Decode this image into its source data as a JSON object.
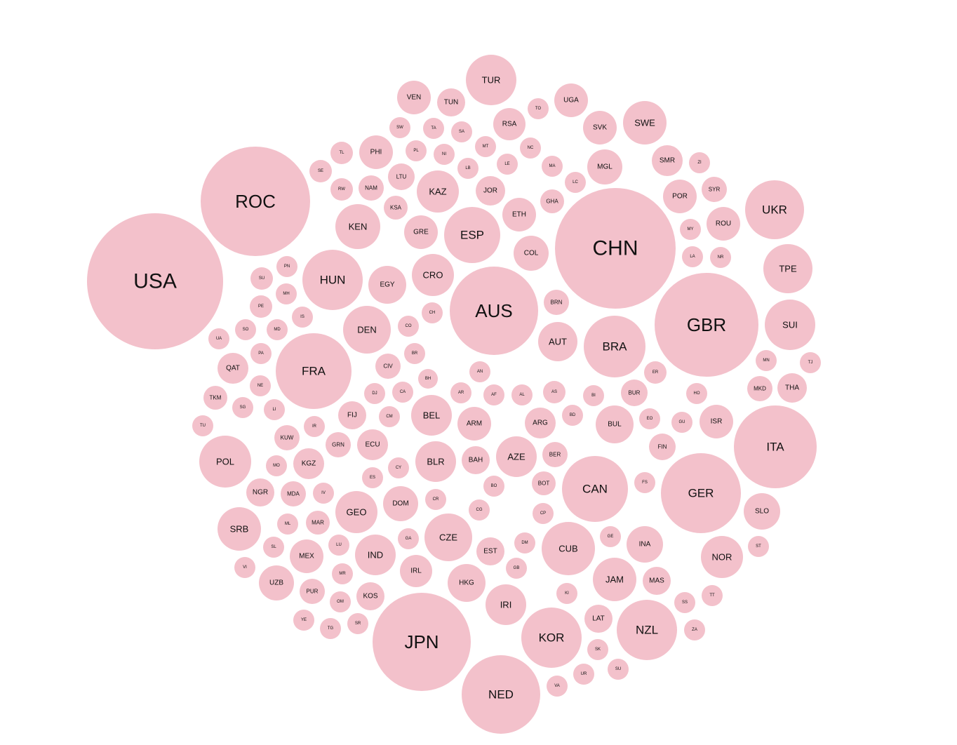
{
  "colors": {
    "bubble": "#f3c1cb",
    "label": "#111111",
    "background": "#ffffff"
  },
  "chart_data": {
    "type": "bubble-pack",
    "bubbles": [
      {
        "label": "USA",
        "value": 113
      },
      {
        "label": "CHN",
        "value": 88
      },
      {
        "label": "ROC",
        "value": 71
      },
      {
        "label": "GBR",
        "value": 65
      },
      {
        "label": "JPN",
        "value": 58
      },
      {
        "label": "AUS",
        "value": 46
      },
      {
        "label": "ITA",
        "value": 40
      },
      {
        "label": "GER",
        "value": 37
      },
      {
        "label": "NED",
        "value": 36
      },
      {
        "label": "FRA",
        "value": 33
      },
      {
        "label": "CAN",
        "value": 24
      },
      {
        "label": "BRA",
        "value": 21
      },
      {
        "label": "NZL",
        "value": 20
      },
      {
        "label": "HUN",
        "value": 20
      },
      {
        "label": "KOR",
        "value": 20
      },
      {
        "label": "UKR",
        "value": 19
      },
      {
        "label": "ESP",
        "value": 17
      },
      {
        "label": "CUB",
        "value": 15
      },
      {
        "label": "POL",
        "value": 14
      },
      {
        "label": "SUI",
        "value": 13
      },
      {
        "label": "TUR",
        "value": 13
      },
      {
        "label": "TPE",
        "value": 12
      },
      {
        "label": "CZE",
        "value": 11
      },
      {
        "label": "DEN",
        "value": 11
      },
      {
        "label": "KEN",
        "value": 10
      },
      {
        "label": "JAM",
        "value": 9
      },
      {
        "label": "SWE",
        "value": 9
      },
      {
        "label": "CRO",
        "value": 8
      },
      {
        "label": "BLR",
        "value": 7
      },
      {
        "label": "SRB",
        "value": 9
      },
      {
        "label": "BEL",
        "value": 7
      },
      {
        "label": "GEO",
        "value": 8
      },
      {
        "label": "KAZ",
        "value": 8
      },
      {
        "label": "IRI",
        "value": 7
      },
      {
        "label": "INA",
        "value": 5
      },
      {
        "label": "NOR",
        "value": 8
      },
      {
        "label": "BUL",
        "value": 6
      },
      {
        "label": "AZE",
        "value": 7
      },
      {
        "label": "ARM",
        "value": 4
      },
      {
        "label": "ARG",
        "value": 3
      },
      {
        "label": "DOM",
        "value": 5
      },
      {
        "label": "EGY",
        "value": 6
      },
      {
        "label": "HKG",
        "value": 6
      },
      {
        "label": "IND",
        "value": 7
      },
      {
        "label": "MEX",
        "value": 4
      },
      {
        "label": "UZB",
        "value": 5
      },
      {
        "label": "MGL",
        "value": 4
      },
      {
        "label": "ISR",
        "value": 4
      },
      {
        "label": "ECU",
        "value": 3
      },
      {
        "label": "IRL",
        "value": 4
      },
      {
        "label": "ETH",
        "value": 4
      },
      {
        "label": "COL",
        "value": 5
      },
      {
        "label": "PHI",
        "value": 4
      },
      {
        "label": "POR",
        "value": 4
      },
      {
        "label": "ROU",
        "value": 4
      },
      {
        "label": "SLO",
        "value": 5
      },
      {
        "label": "SVK",
        "value": 4
      },
      {
        "label": "RSA",
        "value": 3
      },
      {
        "label": "UGA",
        "value": 4
      },
      {
        "label": "VEN",
        "value": 4
      },
      {
        "label": "THA",
        "value": 2
      },
      {
        "label": "AUT",
        "value": 7
      },
      {
        "label": "FIN",
        "value": 2
      },
      {
        "label": "SMR",
        "value": 3
      },
      {
        "label": "KGZ",
        "value": 3
      },
      {
        "label": "MAS",
        "value": 2
      },
      {
        "label": "EST",
        "value": 2
      },
      {
        "label": "BAH",
        "value": 2
      },
      {
        "label": "GRE",
        "value": 4
      },
      {
        "label": "QAT",
        "value": 3
      },
      {
        "label": "KOS",
        "value": 2
      },
      {
        "label": "JOR",
        "value": 2
      },
      {
        "label": "PUR",
        "value": 1
      },
      {
        "label": "NGR",
        "value": 2
      },
      {
        "label": "LTU",
        "value": 1
      },
      {
        "label": "MKD",
        "value": 1
      },
      {
        "label": "MAR",
        "value": 1
      },
      {
        "label": "TUN",
        "value": 2
      },
      {
        "label": "FIJ",
        "value": 1
      },
      {
        "label": "BOT",
        "value": 1
      },
      {
        "label": "LAT",
        "value": 1
      },
      {
        "label": "GRN",
        "value": 1
      },
      {
        "label": "BUR",
        "value": 1
      },
      {
        "label": "BER",
        "value": 1
      },
      {
        "label": "MDA",
        "value": 1
      },
      {
        "label": "KUW",
        "value": 1
      },
      {
        "label": "NAM",
        "value": 1
      },
      {
        "label": "TKM",
        "value": 1
      },
      {
        "label": "BRN",
        "value": 1
      },
      {
        "label": "KSA",
        "value": 1
      },
      {
        "label": "SYR",
        "value": 1
      },
      {
        "label": "GHA",
        "value": 1
      },
      {
        "label": "CIV",
        "value": 1
      },
      {
        "label": "EGY2",
        "value": 0
      },
      {
        "label": "SU",
        "value": 0
      },
      {
        "label": "PN",
        "value": 0
      },
      {
        "label": "PE",
        "value": 0
      },
      {
        "label": "MH",
        "value": 0
      },
      {
        "label": "IS",
        "value": 0
      },
      {
        "label": "UA",
        "value": 0
      },
      {
        "label": "SO",
        "value": 0
      },
      {
        "label": "MD",
        "value": 0
      },
      {
        "label": "PA",
        "value": 0
      },
      {
        "label": "NE",
        "value": 0
      },
      {
        "label": "LI",
        "value": 0
      },
      {
        "label": "SG",
        "value": 0
      },
      {
        "label": "TU",
        "value": 0
      },
      {
        "label": "IR",
        "value": 0
      },
      {
        "label": "MO",
        "value": 0
      },
      {
        "label": "IV",
        "value": 0
      },
      {
        "label": "ML",
        "value": 0
      },
      {
        "label": "SL",
        "value": 0
      },
      {
        "label": "VI",
        "value": 0
      },
      {
        "label": "LU",
        "value": 0
      },
      {
        "label": "MR",
        "value": 0
      },
      {
        "label": "YE",
        "value": 0
      },
      {
        "label": "TG",
        "value": 0
      },
      {
        "label": "OM",
        "value": 0
      },
      {
        "label": "SR",
        "value": 0
      },
      {
        "label": "TL",
        "value": 0
      },
      {
        "label": "SE",
        "value": 0
      },
      {
        "label": "RW",
        "value": 0
      },
      {
        "label": "SW",
        "value": 0
      },
      {
        "label": "TA",
        "value": 0
      },
      {
        "label": "SA",
        "value": 0
      },
      {
        "label": "PL",
        "value": 0
      },
      {
        "label": "NI",
        "value": 0
      },
      {
        "label": "MT",
        "value": 0
      },
      {
        "label": "LB",
        "value": 0
      },
      {
        "label": "LE",
        "value": 0
      },
      {
        "label": "TO",
        "value": 0
      },
      {
        "label": "NC",
        "value": 0
      },
      {
        "label": "MA",
        "value": 0
      },
      {
        "label": "LC",
        "value": 0
      },
      {
        "label": "ZI",
        "value": 0
      },
      {
        "label": "MY",
        "value": 0
      },
      {
        "label": "LA",
        "value": 0
      },
      {
        "label": "NR",
        "value": 0
      },
      {
        "label": "CH",
        "value": 0
      },
      {
        "label": "CO",
        "value": 0
      },
      {
        "label": "BR",
        "value": 0
      },
      {
        "label": "BH",
        "value": 0
      },
      {
        "label": "AN",
        "value": 0
      },
      {
        "label": "AF",
        "value": 0
      },
      {
        "label": "AL",
        "value": 0
      },
      {
        "label": "AS",
        "value": 0
      },
      {
        "label": "BI",
        "value": 0
      },
      {
        "label": "ER",
        "value": 0
      },
      {
        "label": "HO",
        "value": 0
      },
      {
        "label": "MN",
        "value": 0
      },
      {
        "label": "TJ",
        "value": 0
      },
      {
        "label": "DJ",
        "value": 0
      },
      {
        "label": "CA",
        "value": 0
      },
      {
        "label": "AR",
        "value": 0
      },
      {
        "label": "CM",
        "value": 0
      },
      {
        "label": "BD",
        "value": 0
      },
      {
        "label": "EO",
        "value": 0
      },
      {
        "label": "GU",
        "value": 0
      },
      {
        "label": "CY",
        "value": 0
      },
      {
        "label": "ES",
        "value": 0
      },
      {
        "label": "CR",
        "value": 0
      },
      {
        "label": "BO",
        "value": 0
      },
      {
        "label": "CG",
        "value": 0
      },
      {
        "label": "CP",
        "value": 0
      },
      {
        "label": "FS",
        "value": 0
      },
      {
        "label": "GA",
        "value": 0
      },
      {
        "label": "DM",
        "value": 0
      },
      {
        "label": "GB",
        "value": 0
      },
      {
        "label": "GE",
        "value": 0
      },
      {
        "label": "KI",
        "value": 0
      },
      {
        "label": "ST",
        "value": 0
      },
      {
        "label": "TT",
        "value": 0
      },
      {
        "label": "SS",
        "value": 0
      },
      {
        "label": "SK",
        "value": 0
      },
      {
        "label": "SU2",
        "value": 0
      },
      {
        "label": "UR",
        "value": 0
      },
      {
        "label": "VA",
        "value": 0
      },
      {
        "label": "ZA",
        "value": 0
      }
    ]
  }
}
